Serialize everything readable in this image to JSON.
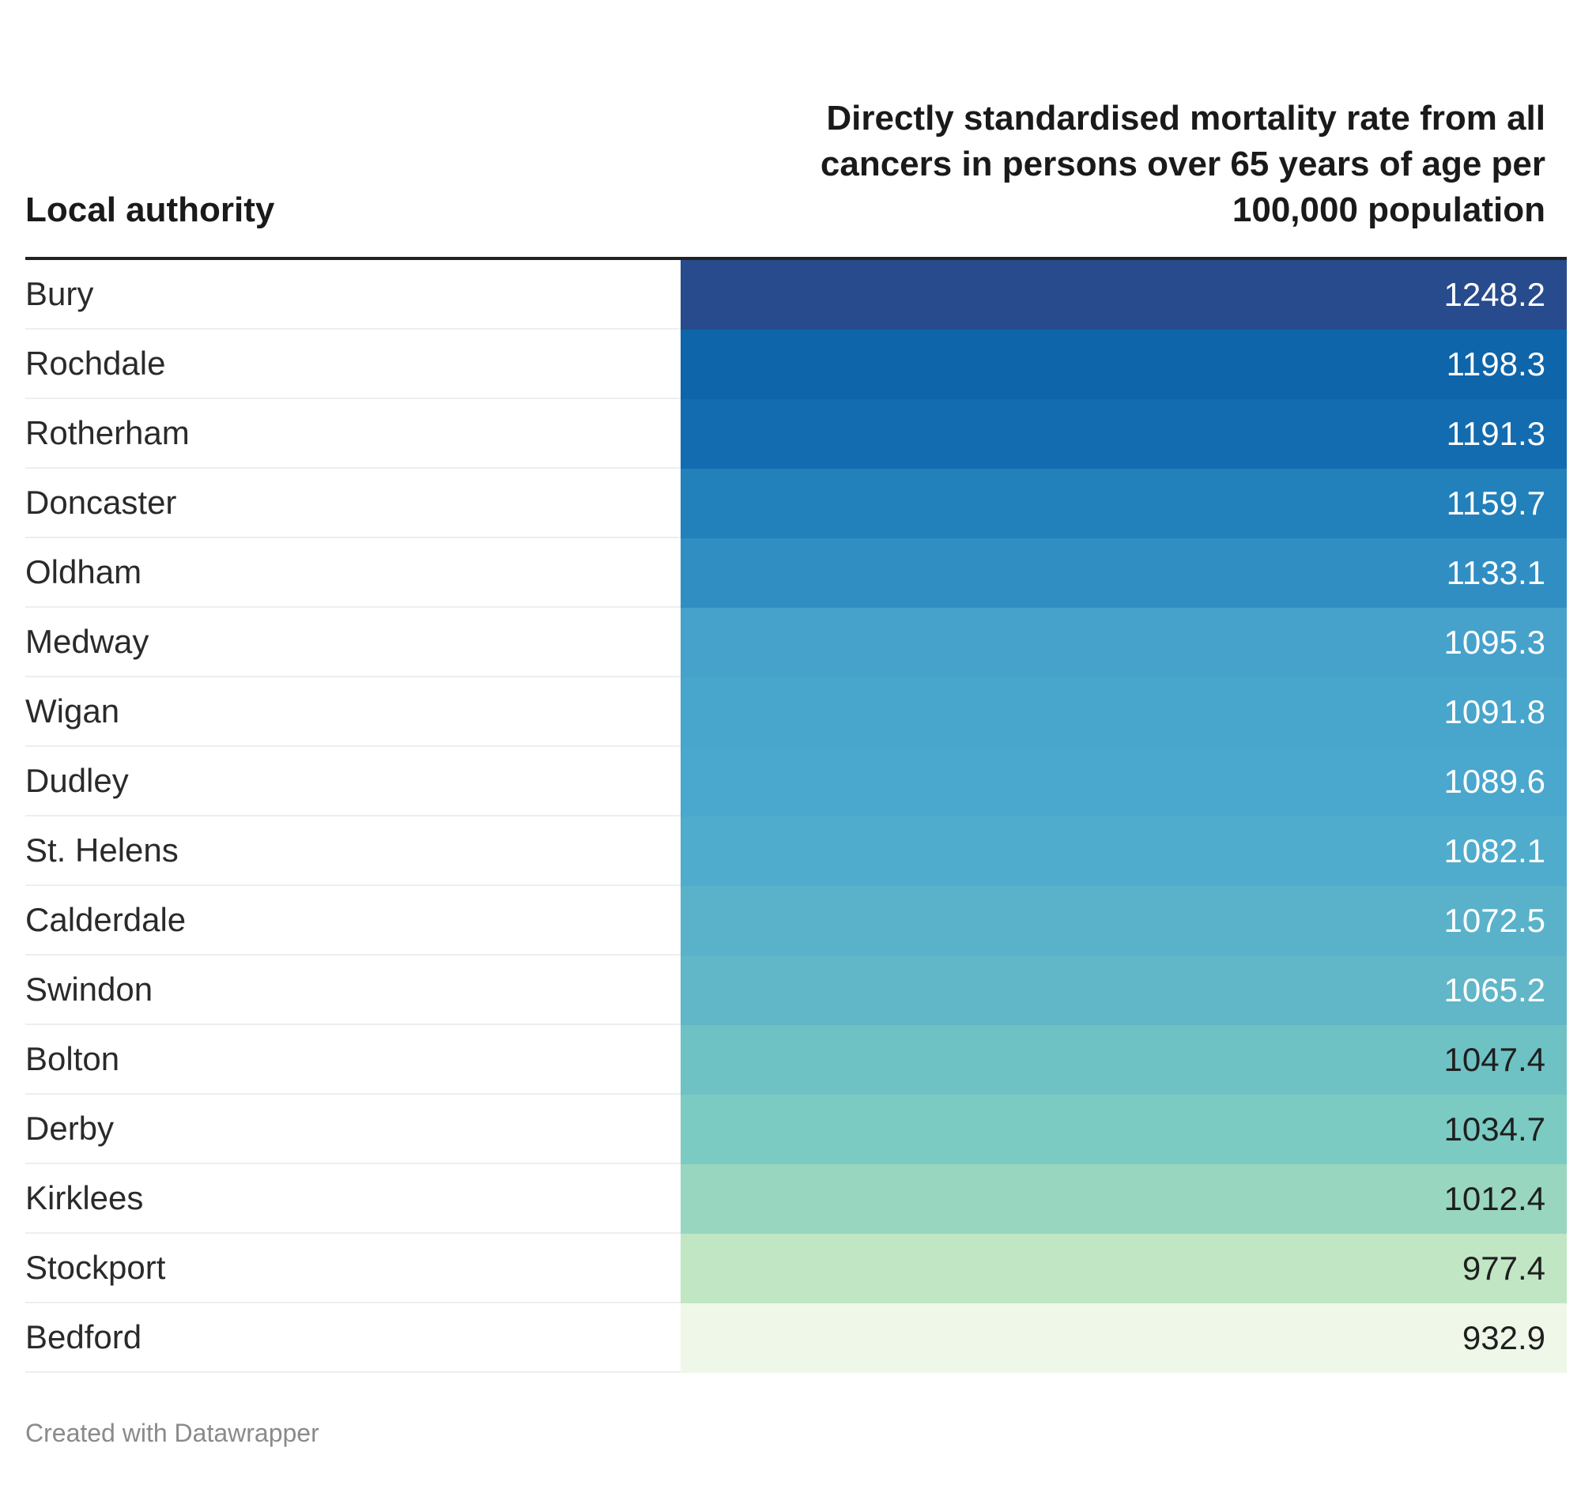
{
  "chart_data": {
    "type": "table",
    "columns": [
      "Local authority",
      "Directly standardised mortality rate from all cancers in persons over 65 years of age per 100,000 population"
    ],
    "rows": [
      {
        "name": "Bury",
        "value": 1248.2,
        "label": "1248.2",
        "color": "#274b8c",
        "text_color": "#ffffff"
      },
      {
        "name": "Rochdale",
        "value": 1198.3,
        "label": "1198.3",
        "color": "#0f65aa",
        "text_color": "#ffffff"
      },
      {
        "name": "Rotherham",
        "value": 1191.3,
        "label": "1191.3",
        "color": "#136cb0",
        "text_color": "#ffffff"
      },
      {
        "name": "Doncaster",
        "value": 1159.7,
        "label": "1159.7",
        "color": "#2280bb",
        "text_color": "#ffffff"
      },
      {
        "name": "Oldham",
        "value": 1133.1,
        "label": "1133.1",
        "color": "#318ec3",
        "text_color": "#ffffff"
      },
      {
        "name": "Medway",
        "value": 1095.3,
        "label": "1095.3",
        "color": "#46a2cb",
        "text_color": "#ffffff"
      },
      {
        "name": "Wigan",
        "value": 1091.8,
        "label": "1091.8",
        "color": "#48a5cc",
        "text_color": "#ffffff"
      },
      {
        "name": "Dudley",
        "value": 1089.6,
        "label": "1089.6",
        "color": "#4aa7cd",
        "text_color": "#ffffff"
      },
      {
        "name": "St. Helens",
        "value": 1082.1,
        "label": "1082.1",
        "color": "#50accc",
        "text_color": "#ffffff"
      },
      {
        "name": "Calderdale",
        "value": 1072.5,
        "label": "1072.5",
        "color": "#59b2c9",
        "text_color": "#ffffff"
      },
      {
        "name": "Swindon",
        "value": 1065.2,
        "label": "1065.2",
        "color": "#61b6c7",
        "text_color": "#ffffff"
      },
      {
        "name": "Bolton",
        "value": 1047.4,
        "label": "1047.4",
        "color": "#6ec2c4",
        "text_color": "#1f1f1f"
      },
      {
        "name": "Derby",
        "value": 1034.7,
        "label": "1034.7",
        "color": "#7bcbc2",
        "text_color": "#1f1f1f"
      },
      {
        "name": "Kirklees",
        "value": 1012.4,
        "label": "1012.4",
        "color": "#98d6c0",
        "text_color": "#1f1f1f"
      },
      {
        "name": "Stockport",
        "value": 977.4,
        "label": "977.4",
        "color": "#c1e6c4",
        "text_color": "#1f1f1f"
      },
      {
        "name": "Bedford",
        "value": 932.9,
        "label": "932.9",
        "color": "#eef7e8",
        "text_color": "#1f1f1f"
      }
    ]
  },
  "footer": "Created with Datawrapper"
}
